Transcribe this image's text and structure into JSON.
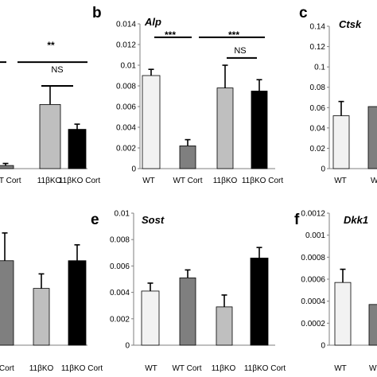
{
  "chart_data": [
    {
      "id": "a",
      "type": "bar",
      "panel_letter": "",
      "title": "",
      "categories": [
        "WT Cort",
        "11βKO",
        "11βKO Cort"
      ],
      "values": [
        0.0003,
        0.0062,
        0.0038
      ],
      "errors": [
        0.0002,
        0.0018,
        0.0005
      ],
      "fills": [
        "#7f7f7f",
        "#bfbfbf",
        "#000000"
      ],
      "ylim": [
        0,
        0.014
      ],
      "yticks": [],
      "annotations": [
        {
          "text": "**",
          "kind": "sig"
        },
        {
          "text": "NS",
          "kind": "ns"
        }
      ]
    },
    {
      "id": "b",
      "type": "bar",
      "panel_letter": "b",
      "title": "Alp",
      "categories": [
        "WT",
        "WT Cort",
        "11βKO",
        "11βKO Cort"
      ],
      "values": [
        0.009,
        0.0022,
        0.0078,
        0.0075
      ],
      "errors": [
        0.0006,
        0.0006,
        0.0022,
        0.0011
      ],
      "fills": [
        "#f2f2f2",
        "#7f7f7f",
        "#bfbfbf",
        "#000000"
      ],
      "ylim": [
        0,
        0.014
      ],
      "yticks": [
        "0",
        "0.002",
        "0.004",
        "0.006",
        "0.008",
        "0.01",
        "0.012",
        "0.014"
      ],
      "annotations": [
        {
          "text": "***",
          "kind": "sig"
        },
        {
          "text": "***",
          "kind": "sig"
        },
        {
          "text": "NS",
          "kind": "ns"
        }
      ]
    },
    {
      "id": "c",
      "type": "bar",
      "panel_letter": "c",
      "title": "Ctsk",
      "categories": [
        "WT",
        "WT C"
      ],
      "values": [
        0.052,
        0.061
      ],
      "errors": [
        0.014,
        0.0
      ],
      "fills": [
        "#f2f2f2",
        "#7f7f7f"
      ],
      "ylim": [
        0,
        0.14
      ],
      "yticks": [
        "0",
        "0.02",
        "0.04",
        "0.06",
        "0.08",
        "0.1",
        "0.12",
        "0.14"
      ],
      "annotations": []
    },
    {
      "id": "d",
      "type": "bar",
      "panel_letter": "",
      "title": "",
      "categories": [
        "T Cort",
        "11βKO",
        "11βKO Cort"
      ],
      "values": [
        0.0064,
        0.0043,
        0.0064
      ],
      "errors": [
        0.0021,
        0.0011,
        0.0012
      ],
      "fills": [
        "#7f7f7f",
        "#bfbfbf",
        "#000000"
      ],
      "ylim": [
        0,
        0.01
      ],
      "yticks": [],
      "annotations": []
    },
    {
      "id": "e",
      "type": "bar",
      "panel_letter": "e",
      "title": "Sost",
      "categories": [
        "WT",
        "WT Cort",
        "11βKO",
        "11βKO Cort"
      ],
      "values": [
        0.0041,
        0.0051,
        0.0029,
        0.0066
      ],
      "errors": [
        0.0006,
        0.0006,
        0.0009,
        0.0008
      ],
      "fills": [
        "#f2f2f2",
        "#7f7f7f",
        "#bfbfbf",
        "#000000"
      ],
      "ylim": [
        0,
        0.01
      ],
      "yticks": [
        "0",
        "0.002",
        "0.004",
        "0.006",
        "0.008",
        "0.01"
      ],
      "annotations": []
    },
    {
      "id": "f",
      "type": "bar",
      "panel_letter": "f",
      "title": "Dkk1",
      "categories": [
        "WT",
        "WT"
      ],
      "values": [
        0.00057,
        0.00037
      ],
      "errors": [
        0.00012,
        0.0
      ],
      "fills": [
        "#f2f2f2",
        "#7f7f7f"
      ],
      "ylim": [
        0,
        0.0012
      ],
      "yticks": [
        "0",
        "0.0002",
        "0.0004",
        "0.0006",
        "0.0008",
        "0.001",
        "0.0012"
      ],
      "annotations": []
    }
  ]
}
